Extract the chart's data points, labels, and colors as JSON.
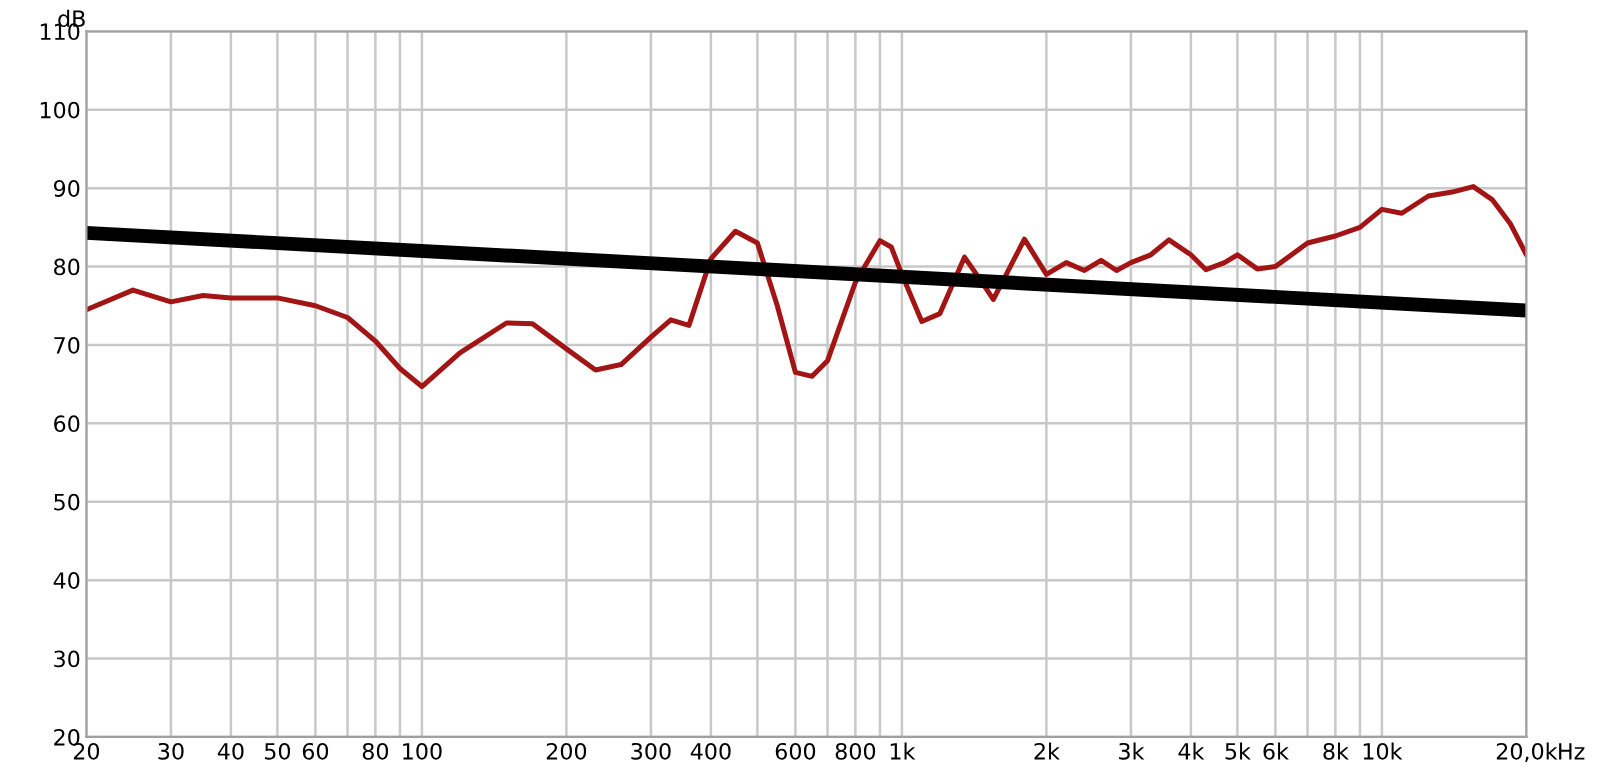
{
  "chart_data": {
    "type": "line",
    "ylabel": "dB",
    "xlabel": "Hz",
    "log": "x",
    "grid": true,
    "xlim": [
      20,
      20000
    ],
    "ylim": [
      20,
      110
    ],
    "xticks": [
      20,
      30,
      40,
      50,
      60,
      {
        "value": 70,
        "label": null
      },
      80,
      {
        "value": 90,
        "label": null
      },
      100,
      200,
      300,
      400,
      {
        "value": 500,
        "label": null
      },
      600,
      {
        "value": 700,
        "label": null
      },
      800,
      {
        "value": 900,
        "label": null
      },
      {
        "value": 1000,
        "label": "1k"
      },
      {
        "value": 2000,
        "label": "2k"
      },
      {
        "value": 3000,
        "label": "3k"
      },
      {
        "value": 4000,
        "label": "4k"
      },
      {
        "value": 5000,
        "label": "5k"
      },
      {
        "value": 6000,
        "label": "6k"
      },
      {
        "value": 7000,
        "label": null
      },
      {
        "value": 8000,
        "label": "8k"
      },
      {
        "value": 9000,
        "label": null
      },
      {
        "value": 10000,
        "label": "10k"
      },
      {
        "value": 20000,
        "label": "20,0k"
      }
    ],
    "yticks": [
      20,
      30,
      40,
      50,
      60,
      70,
      80,
      90,
      100,
      110
    ],
    "series": [
      {
        "color": "#a31515",
        "x": [
          20,
          25,
          30,
          35,
          40,
          50,
          60,
          70,
          80,
          90,
          100,
          120,
          150,
          170,
          200,
          230,
          260,
          300,
          330,
          360,
          400,
          450,
          500,
          550,
          600,
          650,
          700,
          800,
          900,
          950,
          1000,
          1100,
          1200,
          1350,
          1450,
          1550,
          1650,
          1800,
          2000,
          2200,
          2400,
          2600,
          2800,
          3000,
          3300,
          3600,
          4000,
          4300,
          4700,
          5000,
          5500,
          6000,
          7000,
          8000,
          9000,
          10000,
          11000,
          12500,
          14000,
          15500,
          17000,
          18500,
          20000
        ],
        "values": [
          74.5,
          77,
          75.5,
          76.3,
          76,
          76,
          75,
          73.5,
          70.5,
          67,
          64.7,
          69,
          72.8,
          72.7,
          69.5,
          66.8,
          67.5,
          71,
          73.2,
          72.5,
          81,
          84.5,
          83,
          75,
          66.5,
          66,
          68,
          78,
          83.3,
          82.5,
          79,
          73,
          74,
          81.2,
          78.5,
          75.8,
          79,
          83.5,
          79,
          80.5,
          79.5,
          80.8,
          79.5,
          80.5,
          81.5,
          83.4,
          81.5,
          79.6,
          80.5,
          81.5,
          79.7,
          80,
          83,
          83.9,
          85,
          87.3,
          86.8,
          89,
          89.5,
          90.2,
          88.5,
          85.5,
          81.5
        ]
      },
      {
        "color": "#000000",
        "x": [
          20,
          20000
        ],
        "values": [
          84.3,
          74.4
        ]
      }
    ]
  }
}
